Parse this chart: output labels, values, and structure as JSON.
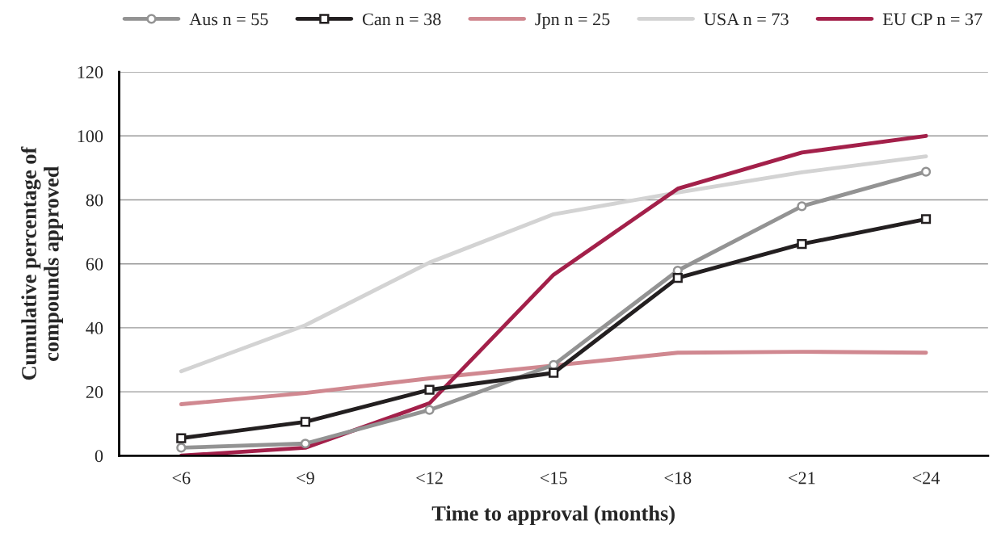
{
  "chart_data": {
    "type": "line",
    "xlabel": "Time to approval (months)",
    "ylabel": "Cumulative percentage of\ncompounds approved",
    "categories": [
      "<6",
      "<9",
      "<12",
      "<15",
      "<18",
      "<21",
      "<24"
    ],
    "series": [
      {
        "name": "Aus n = 55",
        "color": "#939393",
        "marker": "circle",
        "values": [
          2.5,
          3.8,
          14.3,
          28.4,
          57.9,
          78,
          88.8
        ]
      },
      {
        "name": "Can n = 38",
        "color": "#231f20",
        "marker": "square",
        "values": [
          5.5,
          10.6,
          20.6,
          25.9,
          55.6,
          66.2,
          74
        ]
      },
      {
        "name": "Jpn n = 25",
        "color": "#d08890",
        "marker": "none",
        "values": [
          16.1,
          19.6,
          24.2,
          28.2,
          32.2,
          32.5,
          32.2
        ]
      },
      {
        "name": "USA n = 73",
        "color": "#d3d3d3",
        "marker": "none",
        "values": [
          26.4,
          40.8,
          60.4,
          75.5,
          82.3,
          88.6,
          93.6
        ]
      },
      {
        "name": "EU CP n = 37",
        "color": "#a3204a",
        "marker": "none",
        "values": [
          0,
          2.5,
          16.4,
          56.6,
          83.5,
          94.8,
          100
        ]
      }
    ],
    "ylim": [
      0,
      120
    ],
    "yticks": [
      0,
      20,
      40,
      60,
      80,
      100,
      120
    ],
    "grid": "y",
    "legend": "top"
  }
}
